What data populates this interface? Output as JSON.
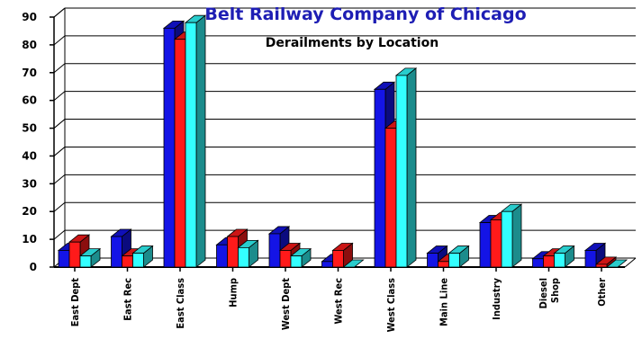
{
  "chart_data": {
    "type": "bar",
    "title": "Belt Railway Company of Chicago",
    "subtitle": "Derailments by Location",
    "categories": [
      [
        "East Dept"
      ],
      [
        "East Rec"
      ],
      [
        "East Class"
      ],
      [
        "Hump"
      ],
      [
        "West Dept"
      ],
      [
        "West Rec"
      ],
      [
        "West Class"
      ],
      [
        "Main Line"
      ],
      [
        "Industry"
      ],
      [
        "Diesel",
        "Shop"
      ],
      [
        "Other"
      ]
    ],
    "series": [
      {
        "values": [
          6,
          11,
          86,
          8,
          12,
          2,
          64,
          5,
          16,
          3,
          6
        ],
        "color": "#1414e6"
      },
      {
        "values": [
          9,
          4,
          82,
          11,
          6,
          6,
          50,
          2,
          17,
          4,
          1
        ],
        "color": "#ff1a1a"
      },
      {
        "values": [
          4,
          5,
          88,
          7,
          4,
          0,
          69,
          5,
          20,
          5,
          0
        ],
        "color": "#33ffff"
      }
    ],
    "ylim": [
      0,
      90
    ],
    "yticks": [
      0,
      10,
      20,
      30,
      40,
      50,
      60,
      70,
      80,
      90
    ],
    "grid": true,
    "legend": "none"
  }
}
